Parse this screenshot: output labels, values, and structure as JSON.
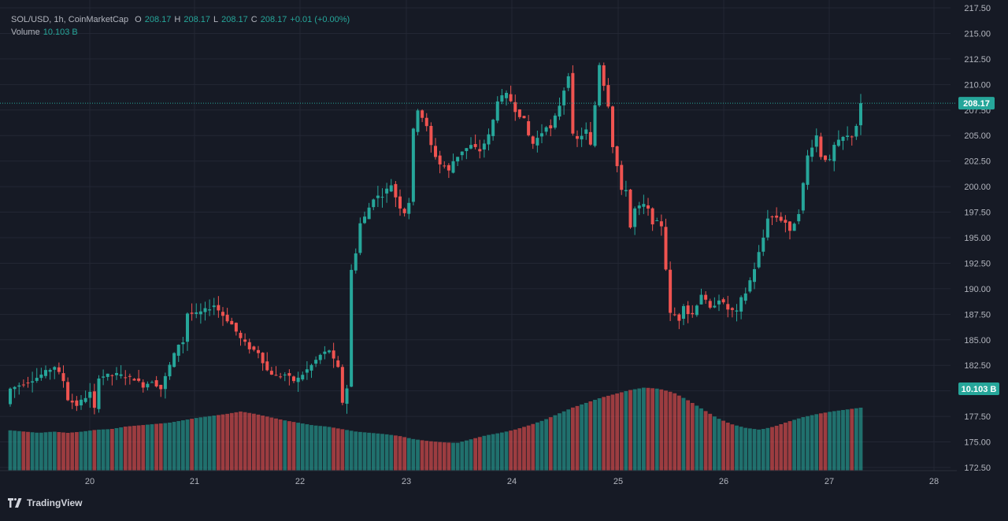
{
  "legend": {
    "symbol": "SOL/USD, 1h, CoinMarketCap",
    "open_label": "O",
    "open": "208.17",
    "high_label": "H",
    "high": "208.17",
    "low_label": "L",
    "low": "208.17",
    "close_label": "C",
    "close": "208.17",
    "change": "+0.01 (+0.00%)",
    "volume_label": "Volume",
    "volume_value": "10.103 B"
  },
  "last_price_tag": "208.17",
  "volume_tag": "10.103 B",
  "brand": "TradingView",
  "colors": {
    "background": "#161a25",
    "up": "#26a69a",
    "down": "#ef5350",
    "grid": "#232734",
    "axis_text": "#b2b5be"
  },
  "chart_data": {
    "type": "candlestick",
    "price_axis": {
      "ticks": [
        "172.50",
        "175.00",
        "177.50",
        "180.00",
        "182.50",
        "185.00",
        "187.50",
        "190.00",
        "192.50",
        "195.00",
        "197.50",
        "200.00",
        "202.50",
        "205.00",
        "207.50",
        "210.00",
        "212.50",
        "215.00",
        "217.50"
      ],
      "range": [
        172.5,
        217.5
      ]
    },
    "time_axis": {
      "ticks": [
        "20",
        "21",
        "22",
        "23",
        "24",
        "25",
        "26",
        "27",
        "28"
      ]
    },
    "grid": true,
    "close_path": [
      [
        0,
        180.2
      ],
      [
        6,
        181.3
      ],
      [
        10,
        182.4
      ],
      [
        12,
        181.0
      ],
      [
        13,
        179.2
      ],
      [
        15,
        178.6
      ],
      [
        18,
        179.8
      ],
      [
        19,
        178.2
      ],
      [
        20,
        181.4
      ],
      [
        24,
        181.6
      ],
      [
        28,
        181.2
      ],
      [
        30,
        180.5
      ],
      [
        32,
        181.0
      ],
      [
        34,
        180.2
      ],
      [
        36,
        182.5
      ],
      [
        38,
        184.6
      ],
      [
        39,
        184.8
      ],
      [
        40,
        187.6
      ],
      [
        42,
        187.5
      ],
      [
        44,
        187.9
      ],
      [
        46,
        188.4
      ],
      [
        48,
        187.4
      ],
      [
        50,
        186.5
      ],
      [
        52,
        185.1
      ],
      [
        54,
        184.2
      ],
      [
        56,
        183.8
      ],
      [
        58,
        182.0
      ],
      [
        60,
        181.4
      ],
      [
        62,
        181.6
      ],
      [
        64,
        181.0
      ],
      [
        65,
        181.2
      ],
      [
        68,
        182.5
      ],
      [
        70,
        183.5
      ],
      [
        72,
        184.0
      ],
      [
        73,
        183.0
      ],
      [
        74,
        182.2
      ],
      [
        75,
        178.9
      ],
      [
        76,
        180.3
      ],
      [
        77,
        191.8
      ],
      [
        78,
        193.6
      ],
      [
        79,
        196.4
      ],
      [
        80,
        197.0
      ],
      [
        82,
        198.9
      ],
      [
        84,
        199.2
      ],
      [
        86,
        200.2
      ],
      [
        87,
        199.0
      ],
      [
        88,
        198.0
      ],
      [
        89,
        197.5
      ],
      [
        90,
        198.5
      ],
      [
        91,
        205.5
      ],
      [
        92,
        207.6
      ],
      [
        93,
        206.8
      ],
      [
        94,
        205.8
      ],
      [
        95,
        204.0
      ],
      [
        96,
        203.0
      ],
      [
        97,
        202.2
      ],
      [
        98,
        202.0
      ],
      [
        99,
        201.5
      ],
      [
        100,
        202.5
      ],
      [
        102,
        203.5
      ],
      [
        104,
        204.0
      ],
      [
        106,
        203.5
      ],
      [
        108,
        205.0
      ],
      [
        109,
        206.5
      ],
      [
        110,
        208.5
      ],
      [
        112,
        209.0
      ],
      [
        113,
        208.4
      ],
      [
        114,
        207.5
      ],
      [
        116,
        206.5
      ],
      [
        117,
        205.0
      ],
      [
        118,
        204.2
      ],
      [
        120,
        205.3
      ],
      [
        121,
        206.0
      ],
      [
        122,
        205.6
      ],
      [
        124,
        208.0
      ],
      [
        126,
        211.0
      ],
      [
        127,
        205.0
      ],
      [
        128,
        204.6
      ],
      [
        130,
        205.5
      ],
      [
        131,
        204.0
      ],
      [
        132,
        208.0
      ],
      [
        133,
        212.0
      ],
      [
        134,
        210.0
      ],
      [
        135,
        208.0
      ],
      [
        136,
        204.0
      ],
      [
        137,
        202.0
      ],
      [
        138,
        199.5
      ],
      [
        139,
        199.8
      ],
      [
        140,
        196.0
      ],
      [
        141,
        197.8
      ],
      [
        142,
        198.0
      ],
      [
        143,
        198.2
      ],
      [
        144,
        197.7
      ],
      [
        145,
        196.5
      ],
      [
        146,
        196.5
      ],
      [
        147,
        196.2
      ],
      [
        148,
        192.0
      ],
      [
        149,
        187.5
      ],
      [
        150,
        187.4
      ],
      [
        151,
        187.0
      ],
      [
        152,
        188.5
      ],
      [
        153,
        187.6
      ],
      [
        154,
        187.5
      ],
      [
        156,
        189.5
      ],
      [
        158,
        188.0
      ],
      [
        160,
        189.0
      ],
      [
        162,
        188.0
      ],
      [
        164,
        187.7
      ],
      [
        165,
        189.0
      ],
      [
        166,
        189.6
      ],
      [
        167,
        190.8
      ],
      [
        168,
        192.0
      ],
      [
        170,
        195.0
      ],
      [
        171,
        197.0
      ],
      [
        173,
        197.0
      ],
      [
        175,
        196.5
      ],
      [
        176,
        195.5
      ],
      [
        178,
        197.5
      ],
      [
        180,
        203.0
      ],
      [
        182,
        205.0
      ],
      [
        183,
        203.0
      ],
      [
        185,
        202.5
      ],
      [
        186,
        204.0
      ],
      [
        188,
        204.8
      ],
      [
        190,
        205.0
      ],
      [
        191,
        206.0
      ],
      [
        192,
        208.17
      ]
    ],
    "volume": {
      "last": "10.103 B",
      "relative_profile": [
        0.64,
        0.62,
        0.6,
        0.62,
        0.6,
        0.62,
        0.65,
        0.66,
        0.7,
        0.72,
        0.74,
        0.76,
        0.8,
        0.84,
        0.87,
        0.9,
        0.94,
        0.9,
        0.85,
        0.8,
        0.76,
        0.72,
        0.7,
        0.66,
        0.62,
        0.6,
        0.58,
        0.55,
        0.5,
        0.47,
        0.45,
        0.44,
        0.5,
        0.56,
        0.6,
        0.65,
        0.72,
        0.8,
        0.9,
        1.0,
        1.08,
        1.16,
        1.22,
        1.28,
        1.32,
        1.3,
        1.24,
        1.12,
        0.98,
        0.84,
        0.74,
        0.68,
        0.65,
        0.7,
        0.78,
        0.85,
        0.9,
        0.94,
        0.97,
        1.0
      ]
    }
  }
}
